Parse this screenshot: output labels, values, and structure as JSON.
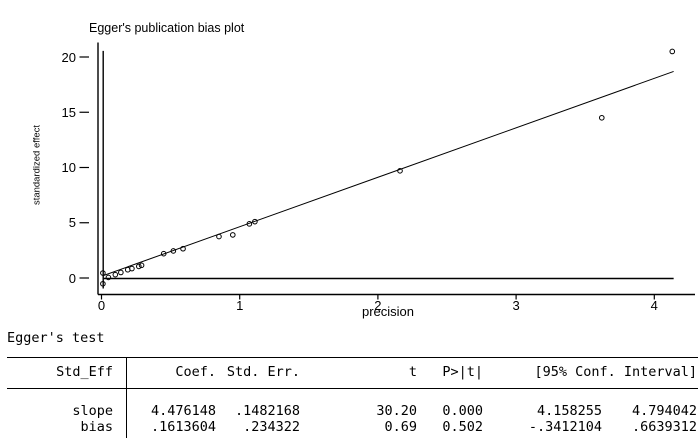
{
  "chart_data": {
    "type": "scatter",
    "title": "Egger's publication bias plot",
    "xlabel": "precision",
    "ylabel": "standardized effect",
    "xlim": [
      0,
      4.3
    ],
    "ylim": [
      -1,
      21.3
    ],
    "xticks": [
      0,
      1,
      2,
      3,
      4
    ],
    "yticks": [
      0,
      5,
      10,
      15,
      20
    ],
    "grid": false,
    "legend": "none",
    "marker": "hollow-circle",
    "points": [
      [
        0.01,
        0.45
      ],
      [
        0.01,
        -0.52
      ],
      [
        0.05,
        0.05
      ],
      [
        0.1,
        0.3
      ],
      [
        0.14,
        0.5
      ],
      [
        0.19,
        0.75
      ],
      [
        0.22,
        0.85
      ],
      [
        0.27,
        1.05
      ],
      [
        0.29,
        1.15
      ],
      [
        0.45,
        2.2
      ],
      [
        0.52,
        2.45
      ],
      [
        0.59,
        2.65
      ],
      [
        0.85,
        3.75
      ],
      [
        0.95,
        3.9
      ],
      [
        1.07,
        4.9
      ],
      [
        1.11,
        5.1
      ],
      [
        2.16,
        9.7
      ],
      [
        3.62,
        14.5
      ],
      [
        4.13,
        20.5
      ]
    ],
    "fit_line": {
      "slope": 4.476148,
      "intercept": 0.1613604,
      "x_start": 0.01,
      "x_end": 4.14
    },
    "reference_lines": {
      "vertical_x": 0,
      "horizontal_y": 0
    }
  },
  "egger_test": {
    "heading": "Egger's test",
    "headers": {
      "std_eff": "Std_Eff",
      "coef": "Coef.",
      "std_err": "Std. Err.",
      "t": "t",
      "p": "P>|t|",
      "ci": "[95% Conf. Interval]"
    },
    "rows": [
      {
        "label": "slope",
        "coef": "4.476148",
        "std_err": ".1482168",
        "t": "30.20",
        "p": "0.000",
        "ci_low": "4.158255",
        "ci_high": "4.794042"
      },
      {
        "label": "bias",
        "coef": ".1613604",
        "std_err": ".234322",
        "t": "0.69",
        "p": "0.502",
        "ci_low": "-.3412104",
        "ci_high": ".6639312"
      }
    ]
  },
  "colors": {
    "foreground": "#000000",
    "background": "#ffffff"
  }
}
